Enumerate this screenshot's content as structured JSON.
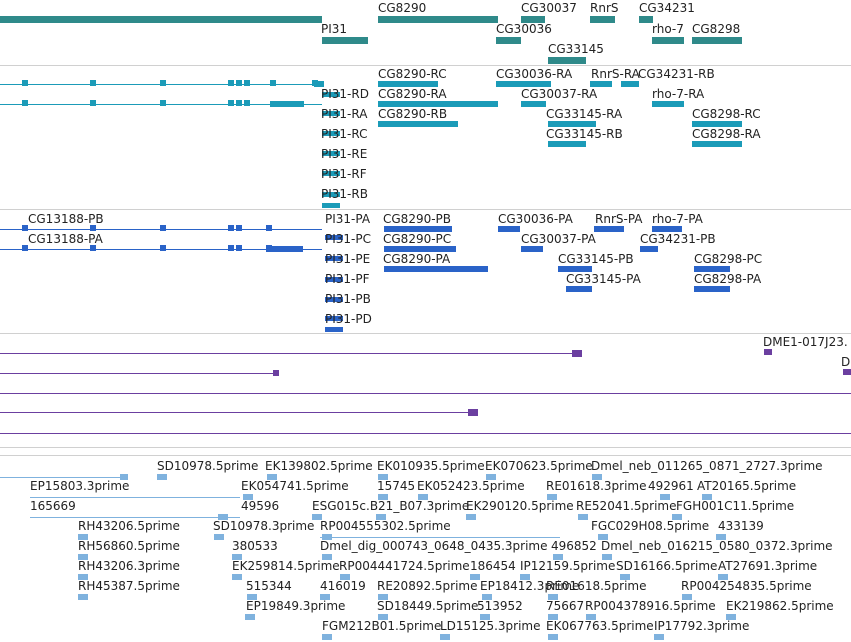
{
  "colors": {
    "gene": "#2f8a8a",
    "transcript": "#1b9bb8",
    "protein": "#2a63c8",
    "alignment": "#6b3fa0",
    "est": "#7fb2de",
    "label": "#222222",
    "separator": "#d0d0d0"
  },
  "tracks": {
    "genes": {
      "labels": [
        "CG8290",
        "CG30037",
        "RnrS",
        "CG34231",
        "PI31",
        "CG30036",
        "rho-7",
        "CG8298",
        "CG33145"
      ]
    },
    "transcripts": {
      "labels": [
        "CG8290-RC",
        "CG30036-RA",
        "RnrS-RA",
        "CG34231-RB",
        "PI31-RD",
        "CG8290-RA",
        "CG30037-RA",
        "rho-7-RA",
        "PI31-RA",
        "CG8290-RB",
        "CG33145-RA",
        "CG8298-RC",
        "PI31-RC",
        "CG33145-RB",
        "CG8298-RA",
        "PI31-RE",
        "PI31-RF",
        "PI31-RB"
      ]
    },
    "proteins": {
      "labels": [
        "CG13188-PB",
        "PI31-PA",
        "CG8290-PB",
        "CG30036-PA",
        "RnrS-PA",
        "rho-7-PA",
        "CG13188-PA",
        "PI31-PC",
        "CG8290-PC",
        "CG30037-PA",
        "CG34231-PB",
        "PI31-PE",
        "CG8290-PA",
        "CG33145-PB",
        "CG8298-PC",
        "PI31-PF",
        "CG33145-PA",
        "CG8298-PA",
        "PI31-PB",
        "PI31-PD"
      ]
    },
    "alignments": {
      "labels": [
        "DME1-017J23.",
        "D"
      ]
    },
    "ests": {
      "labels": [
        "SD10978.5prime",
        "EK139802.5prime",
        "EK010935.5prime",
        "EK070623.5prime",
        "Dmel_neb_011265_0871_2727.3prime",
        "EP15803.3prime",
        "EK054741.5prime",
        "15745",
        "EK052423.5prime",
        "RE01618.3prime",
        "492961",
        "AT20165.5prime",
        "165669",
        "49596",
        "ESG015c.B21_B07.3prime",
        "EK290120.5prime",
        "RE52041.5prime",
        "FGH001C11.5prime",
        "RH43206.5prime",
        "SD10978.3prime",
        "RP004555302.5prime",
        "FGC029H08.5prime",
        "433139",
        "RH56860.5prime",
        "380533",
        "Dmel_dig_000743_0648_0435.3prime",
        "496852",
        "Dmel_neb_016215_0580_0372.3prime",
        "RH43206.3prime",
        "EK259814.5prime",
        "RP004441724.5prime",
        "186454",
        "IP12159.5prime",
        "SD16166.5prime",
        "AT27691.3prime",
        "RH45387.5prime",
        "515344",
        "416019",
        "RE20892.5prime",
        "EP18412.3prime",
        "RE01618.5prime",
        "RP004254835.5prime",
        "EP19849.3prime",
        "SD18449.5prime",
        "513952",
        "75667",
        "RP004378916.5prime",
        "EK219862.5prime",
        "FGM212B01.5prime",
        "LD15125.3prime",
        "EK067763.5prime",
        "IP17792.3prime"
      ]
    }
  }
}
